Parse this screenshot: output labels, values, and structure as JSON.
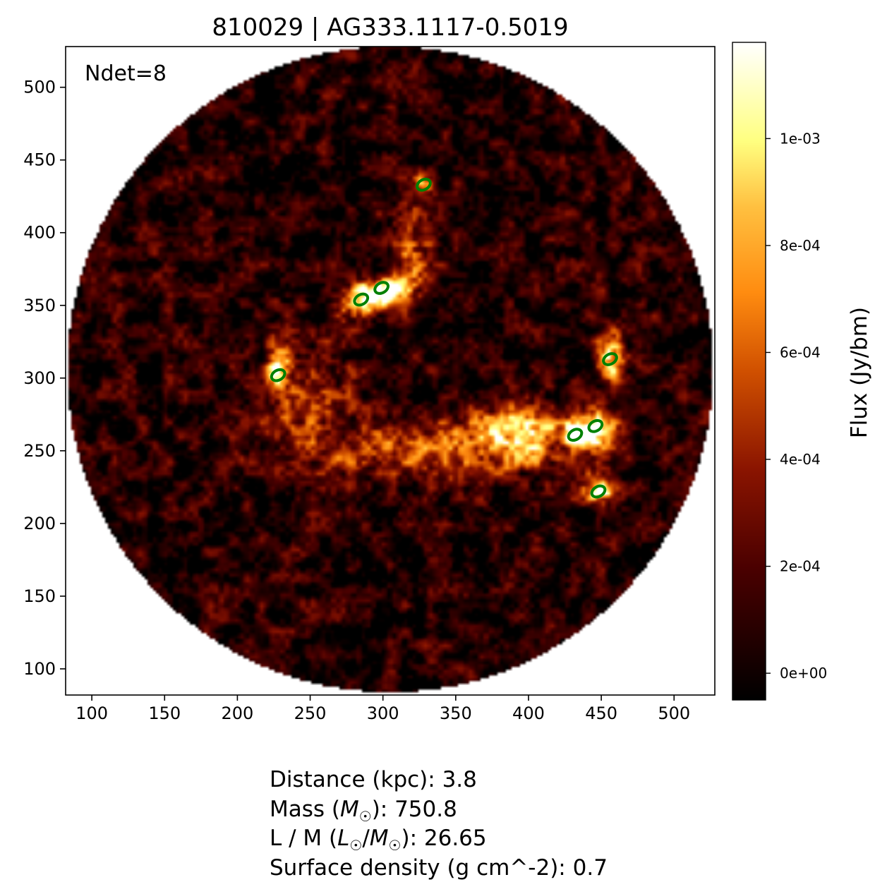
{
  "chart_data": {
    "type": "heatmap",
    "title": "810029 | AG333.1117-0.5019",
    "annotation": "Ndet=8",
    "xlabel": "",
    "ylabel": "",
    "xlim": [
      82,
      528
    ],
    "ylim": [
      82,
      528
    ],
    "x_ticks": [
      100,
      150,
      200,
      250,
      300,
      350,
      400,
      450,
      500
    ],
    "y_ticks": [
      100,
      150,
      200,
      250,
      300,
      350,
      400,
      450,
      500
    ],
    "x_tick_labels": [
      "100",
      "150",
      "200",
      "250",
      "300",
      "350",
      "400",
      "450",
      "500"
    ],
    "y_tick_labels": [
      "100",
      "150",
      "200",
      "250",
      "300",
      "350",
      "400",
      "450",
      "500"
    ],
    "colormap": "afmhot",
    "colorbar": {
      "label": "Flux (Jy/bm)",
      "vmin": -5e-05,
      "vmax": 0.00118,
      "ticks": [
        0,
        0.0002,
        0.0004,
        0.0006,
        0.0008,
        0.001,
        0.0012,
        0.0014
      ],
      "tick_labels": [
        "0e+00",
        "2e-04",
        "4e-04",
        "6e-04",
        "8e-04",
        "1e-03",
        "1e-03",
        "1e-03"
      ]
    },
    "field_of_view": {
      "center_x": 305,
      "center_y": 306,
      "radius": 222
    },
    "emission_regions": [
      {
        "x": 300,
        "y": 360,
        "peak": 0.0011,
        "sx": 14,
        "sy": 7
      },
      {
        "x": 285,
        "y": 350,
        "peak": 0.00085,
        "sx": 9,
        "sy": 7
      },
      {
        "x": 328,
        "y": 433,
        "peak": 0.00075,
        "sx": 5,
        "sy": 5
      },
      {
        "x": 320,
        "y": 390,
        "peak": 0.00055,
        "sx": 10,
        "sy": 24
      },
      {
        "x": 228,
        "y": 305,
        "peak": 0.0009,
        "sx": 5,
        "sy": 10
      },
      {
        "x": 457,
        "y": 315,
        "peak": 0.0011,
        "sx": 6,
        "sy": 12
      },
      {
        "x": 447,
        "y": 266,
        "peak": 0.00115,
        "sx": 8,
        "sy": 9
      },
      {
        "x": 432,
        "y": 262,
        "peak": 0.00095,
        "sx": 6,
        "sy": 6
      },
      {
        "x": 448,
        "y": 223,
        "peak": 0.00105,
        "sx": 8,
        "sy": 6
      },
      {
        "x": 395,
        "y": 262,
        "peak": 0.0008,
        "sx": 22,
        "sy": 14
      },
      {
        "x": 330,
        "y": 250,
        "peak": 0.00045,
        "sx": 60,
        "sy": 14
      },
      {
        "x": 245,
        "y": 290,
        "peak": 0.00035,
        "sx": 25,
        "sy": 30
      }
    ],
    "detections": [
      {
        "x": 328,
        "y": 433
      },
      {
        "x": 299,
        "y": 362
      },
      {
        "x": 285,
        "y": 354
      },
      {
        "x": 228,
        "y": 302
      },
      {
        "x": 456,
        "y": 313
      },
      {
        "x": 446,
        "y": 267
      },
      {
        "x": 432,
        "y": 261
      },
      {
        "x": 448,
        "y": 222
      }
    ]
  },
  "info": {
    "distance": "Distance (kpc): 3.8",
    "mass_prefix": "Mass (",
    "mass_symbol": "M",
    "mass_suffix": "): 750.8",
    "lm_prefix": "L / M (",
    "lm_symbol_l": "L",
    "lm_slash": "/",
    "lm_symbol_m": "M",
    "lm_suffix": "): 26.65",
    "surface": "Surface density (g cm^-2): 0.7",
    "sun_symbol": "☉"
  }
}
